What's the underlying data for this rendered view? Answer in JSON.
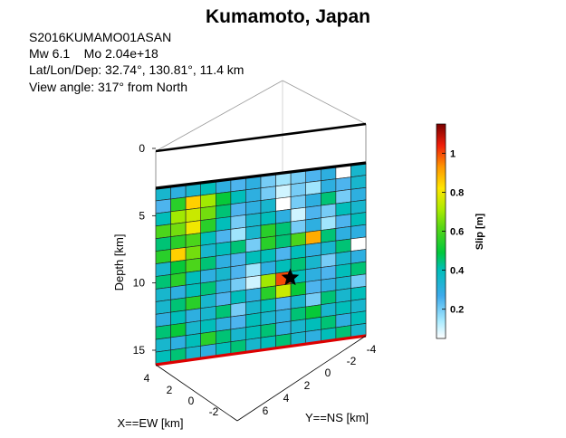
{
  "chart_data": {
    "type": "heatmap",
    "title": "Kumamoto, Japan",
    "event_id": "S2016KUMAMO01ASAN",
    "magnitude_line": "Mw 6.1    Mo 2.04e+18",
    "location_line": "Lat/Lon/Dep: 32.74°, 130.81°, 11.4 km",
    "view_line": "View angle: 317° from North",
    "ylabel": "Depth [km]",
    "xlabel": "X==EW [km]",
    "nslabel": "Y==NS [km]",
    "depth_ticks": [
      "0",
      "5",
      "10",
      "15"
    ],
    "depth_range": [
      0,
      15.9
    ],
    "top_edge_depth": 1.4,
    "hypocenter_depth": 10.2,
    "ew_ticks": [
      "4",
      "2",
      "0",
      "-2"
    ],
    "ns_ticks": [
      "6",
      "4",
      "2",
      "0",
      "-2",
      "-4"
    ],
    "colorbar": {
      "label": "Slip [m]",
      "ticks": [
        "0.2",
        "0.4",
        "0.6",
        "0.8",
        "1"
      ],
      "range": [
        0.05,
        1.15
      ]
    },
    "slip_grid": [
      [
        0.35,
        0.3,
        0.35,
        0.4,
        0.3,
        0.25,
        0.3,
        0.2,
        0.15,
        0.2,
        0.25,
        0.3,
        0.05,
        0.35
      ],
      [
        0.25,
        0.55,
        0.85,
        0.7,
        0.5,
        0.4,
        0.3,
        0.2,
        0.1,
        0.2,
        0.15,
        0.3,
        0.25,
        0.35
      ],
      [
        0.4,
        0.7,
        0.75,
        0.65,
        0.45,
        0.25,
        0.3,
        0.35,
        0.05,
        0.2,
        0.3,
        0.45,
        0.2,
        0.3
      ],
      [
        0.6,
        0.65,
        0.8,
        0.55,
        0.4,
        0.2,
        0.35,
        0.4,
        0.3,
        0.1,
        0.25,
        0.2,
        0.4,
        0.35
      ],
      [
        0.45,
        0.55,
        0.6,
        0.4,
        0.25,
        0.15,
        0.35,
        0.55,
        0.45,
        0.2,
        0.3,
        0.15,
        0.25,
        0.4
      ],
      [
        0.55,
        0.85,
        0.65,
        0.35,
        0.4,
        0.45,
        0.2,
        0.55,
        0.45,
        0.6,
        0.9,
        0.45,
        0.3,
        0.3
      ],
      [
        0.35,
        0.5,
        0.6,
        0.45,
        0.3,
        0.25,
        0.4,
        0.4,
        0.25,
        0.4,
        0.3,
        0.35,
        0.45,
        0.05
      ],
      [
        0.45,
        0.55,
        0.4,
        0.3,
        0.35,
        0.25,
        0.15,
        0.3,
        0.4,
        0.45,
        0.35,
        0.2,
        0.35,
        0.3
      ],
      [
        0.35,
        0.3,
        0.4,
        0.45,
        0.3,
        0.2,
        0.1,
        0.7,
        1.0,
        0.4,
        0.3,
        0.25,
        0.4,
        0.45
      ],
      [
        0.35,
        0.45,
        0.55,
        0.35,
        0.25,
        0.4,
        0.3,
        0.55,
        0.75,
        0.5,
        0.25,
        0.3,
        0.35,
        0.2
      ],
      [
        0.3,
        0.4,
        0.3,
        0.35,
        0.45,
        0.2,
        0.35,
        0.4,
        0.25,
        0.35,
        0.2,
        0.45,
        0.35,
        0.4
      ],
      [
        0.45,
        0.5,
        0.35,
        0.4,
        0.3,
        0.25,
        0.4,
        0.35,
        0.3,
        0.45,
        0.5,
        0.35,
        0.4,
        0.35
      ],
      [
        0.35,
        0.3,
        0.4,
        0.55,
        0.45,
        0.35,
        0.4,
        0.45,
        0.3,
        0.35,
        0.4,
        0.45,
        0.3,
        0.4
      ],
      [
        0.4,
        0.45,
        0.35,
        0.3,
        0.4,
        0.45,
        0.35,
        0.4,
        0.45,
        0.35,
        0.3,
        0.4,
        0.45,
        0.35
      ]
    ]
  }
}
